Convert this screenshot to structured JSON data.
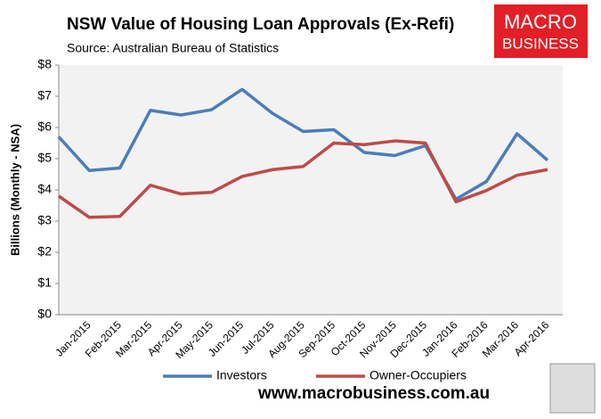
{
  "chart_data": {
    "type": "line",
    "title": "NSW Value of Housing Loan Approvals (Ex-Refi)",
    "subtitle": "Source: Australian Bureau of Statistics",
    "ylabel": "Billions (Monthly - NSA)",
    "logo": [
      "MACRO",
      "BUSINESS"
    ],
    "footer": "www.macrobusiness.com.au",
    "categories": [
      null,
      "Jan-2015",
      "Feb-2015",
      "Mar-2015",
      "Apr-2015",
      "May-2015",
      "Jun-2015",
      "Jul-2015",
      "Aug-2015",
      "Sep-2015",
      "Oct-2015",
      "Nov-2015",
      "Dec-2015",
      "Jan-2016",
      "Feb-2016",
      "Mar-2016",
      "Apr-2016"
    ],
    "series": [
      {
        "name": "Investors",
        "color": "#4a7ebb",
        "values": [
          5.7,
          4.62,
          4.7,
          6.55,
          6.4,
          6.57,
          7.22,
          6.45,
          5.87,
          5.93,
          5.2,
          5.1,
          5.42,
          3.7,
          4.27,
          5.8,
          4.95
        ]
      },
      {
        "name": "Owner-Occupiers",
        "color": "#be4b48",
        "values": [
          3.8,
          3.12,
          3.15,
          4.15,
          3.87,
          3.92,
          4.43,
          4.65,
          4.75,
          5.5,
          5.45,
          5.57,
          5.5,
          3.62,
          3.98,
          4.47,
          4.65
        ]
      }
    ],
    "ylim": [
      0,
      8
    ],
    "yticks": [
      {
        "value": 0,
        "label": "$0"
      },
      {
        "value": 1,
        "label": "$1"
      },
      {
        "value": 2,
        "label": "$2"
      },
      {
        "value": 3,
        "label": "$3"
      },
      {
        "value": 4,
        "label": "$4"
      },
      {
        "value": 5,
        "label": "$5"
      },
      {
        "value": 6,
        "label": "$6"
      },
      {
        "value": 7,
        "label": "$7"
      },
      {
        "value": 8,
        "label": "$8"
      }
    ],
    "legend": "bottom"
  }
}
